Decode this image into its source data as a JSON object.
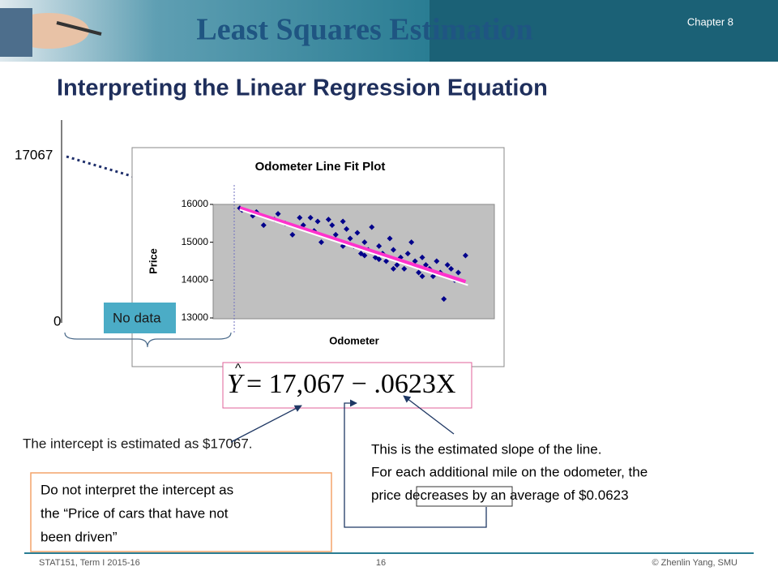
{
  "header": {
    "title": "Least Squares Estimation",
    "chapter": "Chapter 8"
  },
  "subtitle": "Interpreting the Linear Regression Equation",
  "big_axis": {
    "intercept_label": "17067",
    "zero_label": "0",
    "no_data": "No data"
  },
  "plot": {
    "type": "scatter",
    "title": "Odometer Line Fit  Plot",
    "x_label": "Odometer",
    "y_label": "Price",
    "xlim": [
      15000,
      54000
    ],
    "ylim": [
      13000,
      16000
    ],
    "yticks": [
      13000,
      14000,
      15000,
      16000
    ],
    "color": "#00008b",
    "fit_color": "#ff33cc",
    "intercept": 17067,
    "slope": -0.0623,
    "x": [
      18700,
      19000,
      20500,
      21000,
      23500,
      24000,
      25000,
      26000,
      27000,
      27500,
      28500,
      29000,
      30000,
      31000,
      31500,
      32000,
      33000,
      33500,
      34000,
      34500,
      35000,
      35500,
      36000,
      36500,
      37000,
      37500,
      38000,
      38500,
      39000,
      39500,
      40000,
      40500,
      41000,
      41500,
      42000,
      42500,
      43000,
      43500,
      44000,
      44500,
      45000,
      45500,
      46000,
      46500,
      47000,
      47500,
      48000,
      48500,
      49000,
      50000,
      29500,
      36000,
      38000,
      40000,
      33000,
      44000,
      22000
    ],
    "y": [
      15900,
      15850,
      15700,
      15800,
      15600,
      15750,
      15500,
      15200,
      15650,
      15450,
      15650,
      15300,
      15000,
      15600,
      15450,
      15200,
      15550,
      15350,
      15100,
      14900,
      15250,
      14700,
      15000,
      14800,
      15400,
      14600,
      14900,
      14700,
      14500,
      15100,
      14800,
      14400,
      14600,
      14300,
      14700,
      15000,
      14500,
      14200,
      14600,
      14400,
      14300,
      14100,
      14500,
      14200,
      13500,
      14400,
      14300,
      14000,
      14200,
      14650,
      15550,
      14650,
      14550,
      14300,
      14900,
      14100,
      15450
    ]
  },
  "equation": {
    "lhs": "Y",
    "rhs": "= 17,067 − .0623X"
  },
  "annotations": {
    "intercept_note": "The intercept is estimated as $17067.",
    "slope_line1": "This is the estimated slope of the line.",
    "slope_line2": "For each additional  mile on the odometer, the",
    "slope_line3a": "price ",
    "slope_line3b": "decreases",
    "slope_line3c": " by an average of $0.0623",
    "caution_line1": "Do not interpret the intercept as",
    "caution_line2": "the “Price of cars that have not",
    "caution_line3": "been driven”"
  },
  "footer": {
    "course": "STAT151,  Term I  2015-16",
    "page": "16",
    "author": "© Zhenlin Yang, SMU"
  }
}
